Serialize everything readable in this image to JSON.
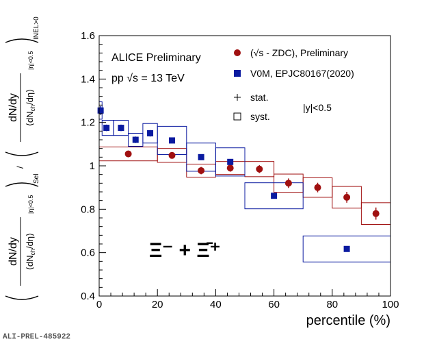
{
  "chart_data": {
    "type": "scatter",
    "xlabel": "percentile (%)",
    "ylabel": "( dN/dy / ⟨dN_ch/dη⟩ |η|<0.5 )_Sel / ( dN/dy / ⟨dN_ch/dη⟩ |η|<0.5 )_INEL>0",
    "xlim": [
      0,
      100
    ],
    "ylim": [
      0.4,
      1.6
    ],
    "xticks": [
      "0",
      "20",
      "40",
      "60",
      "80",
      "100"
    ],
    "yticks": [
      "0.4",
      "0.6",
      "0.8",
      "1",
      "1.2",
      "1.4",
      "1.6"
    ],
    "grid": false,
    "legend_position": "top-right",
    "annotations": {
      "collab": "ALICE Preliminary",
      "system": "pp  √s = 13 TeV",
      "rapidity": "|y|<0.5",
      "particle": "Ξ⁻ + Ξ̄⁺",
      "stat_label": "stat.",
      "syst_label": "syst."
    },
    "series": [
      {
        "name": "(√s - ZDC), Preliminary",
        "color": "#a01010",
        "marker": "circle",
        "points": [
          {
            "x": 10,
            "y": 1.055,
            "stat": 0.015,
            "xlo": 0,
            "xhi": 20,
            "syst": 0.032
          },
          {
            "x": 25,
            "y": 1.048,
            "stat": 0.015,
            "xlo": 20,
            "xhi": 30,
            "syst": 0.032
          },
          {
            "x": 35,
            "y": 0.978,
            "stat": 0.017,
            "xlo": 30,
            "xhi": 40,
            "syst": 0.03
          },
          {
            "x": 45,
            "y": 0.99,
            "stat": 0.017,
            "xlo": 40,
            "xhi": 50,
            "syst": 0.03
          },
          {
            "x": 55,
            "y": 0.985,
            "stat": 0.018,
            "xlo": 50,
            "xhi": 60,
            "syst": 0.035
          },
          {
            "x": 65,
            "y": 0.92,
            "stat": 0.022,
            "xlo": 60,
            "xhi": 70,
            "syst": 0.042
          },
          {
            "x": 75,
            "y": 0.9,
            "stat": 0.022,
            "xlo": 70,
            "xhi": 80,
            "syst": 0.045
          },
          {
            "x": 85,
            "y": 0.855,
            "stat": 0.025,
            "xlo": 80,
            "xhi": 90,
            "syst": 0.05
          },
          {
            "x": 95,
            "y": 0.78,
            "stat": 0.028,
            "xlo": 90,
            "xhi": 100,
            "syst": 0.05
          }
        ]
      },
      {
        "name": "V0M, EPJC80167(2020)",
        "color": "#0a1aa0",
        "marker": "square",
        "points": [
          {
            "x": 0.5,
            "y": 1.255,
            "stat": 0.02,
            "xlo": 0,
            "xhi": 1,
            "syst": 0.04
          },
          {
            "x": 2.5,
            "y": 1.175,
            "stat": 0.015,
            "xlo": 1,
            "xhi": 5,
            "syst": 0.035
          },
          {
            "x": 7.5,
            "y": 1.175,
            "stat": 0.015,
            "xlo": 5,
            "xhi": 10,
            "syst": 0.035
          },
          {
            "x": 12.5,
            "y": 1.12,
            "stat": 0.015,
            "xlo": 10,
            "xhi": 15,
            "syst": 0.03
          },
          {
            "x": 17.5,
            "y": 1.15,
            "stat": 0.015,
            "xlo": 15,
            "xhi": 20,
            "syst": 0.045
          },
          {
            "x": 25,
            "y": 1.117,
            "stat": 0.012,
            "xlo": 20,
            "xhi": 30,
            "syst": 0.065
          },
          {
            "x": 35,
            "y": 1.04,
            "stat": 0.012,
            "xlo": 30,
            "xhi": 40,
            "syst": 0.065
          },
          {
            "x": 45,
            "y": 1.018,
            "stat": 0.012,
            "xlo": 40,
            "xhi": 50,
            "syst": 0.065
          },
          {
            "x": 60,
            "y": 0.862,
            "stat": 0.012,
            "xlo": 50,
            "xhi": 70,
            "syst": 0.06
          },
          {
            "x": 85,
            "y": 0.617,
            "stat": 0.01,
            "xlo": 70,
            "xhi": 100,
            "syst": 0.06
          }
        ]
      }
    ]
  },
  "footer": "ALI-PREL-485922"
}
